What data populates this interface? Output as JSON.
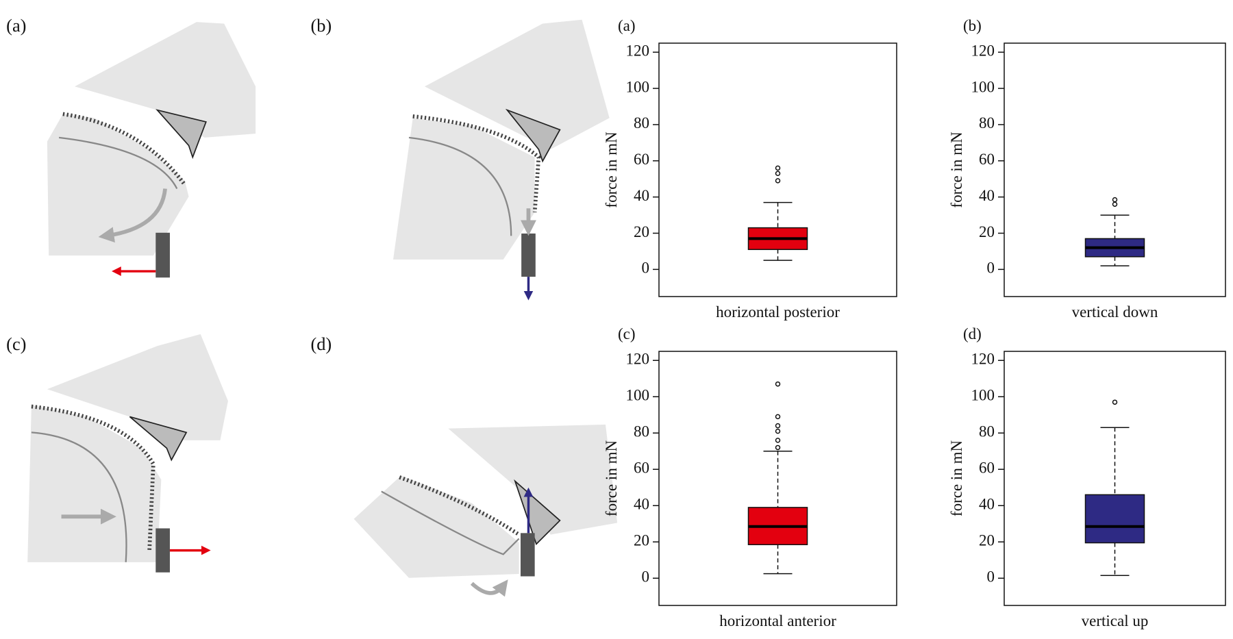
{
  "diagram_panels": [
    "(a)",
    "(b)",
    "(c)",
    "(d)"
  ],
  "chart_data": [
    {
      "type": "box",
      "label": "(a)",
      "ylabel": "force in mN",
      "xlabel": "horizontal posterior",
      "color": "#e3000f",
      "ylim": [
        -15,
        125
      ],
      "yticks": [
        0,
        20,
        40,
        60,
        80,
        100,
        120
      ],
      "whisker_low": 5,
      "q1": 11,
      "median": 17,
      "q3": 23,
      "whisker_high": 37,
      "outliers": [
        49,
        53,
        56
      ]
    },
    {
      "type": "box",
      "label": "(b)",
      "ylabel": "force in mN",
      "xlabel": "vertical down",
      "color": "#2e2a84",
      "ylim": [
        -15,
        125
      ],
      "yticks": [
        0,
        20,
        40,
        60,
        80,
        100,
        120
      ],
      "whisker_low": 2,
      "q1": 7,
      "median": 12,
      "q3": 17,
      "whisker_high": 30,
      "outliers": [
        36,
        38.5
      ]
    },
    {
      "type": "box",
      "label": "(c)",
      "ylabel": "force in mN",
      "xlabel": "horizontal anterior",
      "color": "#e3000f",
      "ylim": [
        -15,
        125
      ],
      "yticks": [
        0,
        20,
        40,
        60,
        80,
        100,
        120
      ],
      "whisker_low": 2.5,
      "q1": 18.5,
      "median": 28.5,
      "q3": 39,
      "whisker_high": 70,
      "outliers": [
        72,
        76,
        81,
        84,
        89,
        107
      ]
    },
    {
      "type": "box",
      "label": "(d)",
      "ylabel": "force in mN",
      "xlabel": "vertical up",
      "color": "#2e2a84",
      "ylim": [
        -15,
        125
      ],
      "yticks": [
        0,
        20,
        40,
        60,
        80,
        100,
        120
      ],
      "whisker_low": 1.5,
      "q1": 19.5,
      "median": 28.5,
      "q3": 46,
      "whisker_high": 83,
      "outliers": [
        97
      ]
    }
  ]
}
